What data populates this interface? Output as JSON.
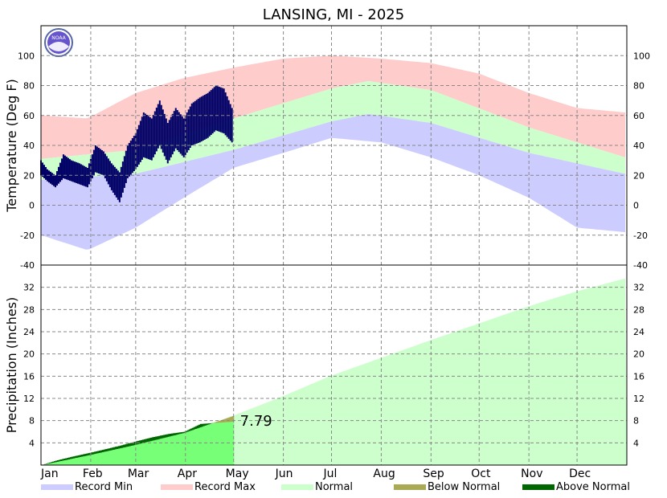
{
  "title": "LANSING, MI - 2025",
  "logo_text": "NOAA",
  "chart_data": [
    {
      "type": "area",
      "name": "temperature",
      "ylabel": "Temperature (Deg F)",
      "ylim": [
        -40,
        120
      ],
      "yticks": [
        -40,
        -20,
        0,
        20,
        40,
        60,
        80,
        100
      ],
      "months": [
        "Jan",
        "Feb",
        "Mar",
        "Apr",
        "May",
        "Jun",
        "Jul",
        "Aug",
        "Sep",
        "Oct",
        "Nov",
        "Dec"
      ],
      "grid": true,
      "normal_high": {
        "days": [
          1,
          60,
          121,
          182,
          205,
          244,
          305,
          365
        ],
        "values": [
          31,
          37,
          58,
          78,
          83,
          77,
          52,
          32
        ]
      },
      "normal_low": {
        "days": [
          1,
          60,
          121,
          182,
          205,
          244,
          305,
          365
        ],
        "values": [
          17,
          21,
          37,
          56,
          61,
          55,
          35,
          21
        ]
      },
      "record_max": {
        "days": [
          1,
          30,
          60,
          90,
          121,
          152,
          182,
          213,
          244,
          274,
          305,
          335,
          365
        ],
        "values": [
          60,
          58,
          75,
          85,
          92,
          98,
          100,
          98,
          95,
          88,
          75,
          65,
          62
        ]
      },
      "record_min": {
        "days": [
          1,
          30,
          60,
          90,
          121,
          152,
          182,
          213,
          244,
          274,
          305,
          335,
          365
        ],
        "values": [
          -20,
          -30,
          -15,
          5,
          25,
          35,
          45,
          42,
          32,
          20,
          5,
          -15,
          -18
        ]
      },
      "observed_2025": {
        "days": [
          1,
          5,
          10,
          15,
          20,
          25,
          30,
          35,
          40,
          45,
          50,
          55,
          60,
          65,
          70,
          75,
          80,
          85,
          90,
          95,
          100,
          105,
          110,
          115,
          120
        ],
        "high": [
          30,
          24,
          20,
          34,
          30,
          28,
          25,
          40,
          36,
          28,
          22,
          40,
          48,
          62,
          58,
          70,
          55,
          65,
          58,
          68,
          72,
          75,
          80,
          78,
          65
        ],
        "low": [
          20,
          16,
          12,
          18,
          16,
          14,
          12,
          22,
          20,
          10,
          2,
          18,
          24,
          32,
          30,
          40,
          28,
          38,
          32,
          40,
          42,
          45,
          50,
          48,
          42
        ]
      }
    },
    {
      "type": "area",
      "name": "precipitation",
      "ylabel": "Precipitation (Inches)",
      "ylim": [
        0,
        36
      ],
      "yticks": [
        4,
        8,
        12,
        16,
        20,
        24,
        28,
        32
      ],
      "normal_cumulative": {
        "days": [
          1,
          31,
          59,
          90,
          120,
          151,
          181,
          212,
          243,
          273,
          304,
          334,
          365
        ],
        "values": [
          0,
          1.8,
          3.6,
          5.8,
          8.8,
          12.3,
          16.0,
          19.2,
          22.4,
          25.4,
          28.5,
          31.2,
          33.6
        ]
      },
      "observed_cumulative": {
        "days": [
          1,
          10,
          20,
          31,
          40,
          50,
          59,
          70,
          80,
          90,
          100,
          105,
          110,
          120
        ],
        "values": [
          0,
          0.8,
          1.5,
          2.2,
          2.8,
          3.5,
          4.2,
          5.0,
          5.6,
          6.0,
          7.4,
          7.5,
          7.6,
          7.79
        ]
      },
      "annotation": "7.79"
    }
  ],
  "legend": [
    {
      "label": "Record Min",
      "color": "#ccccff"
    },
    {
      "label": "Record Max",
      "color": "#ffcccc"
    },
    {
      "label": "Normal",
      "color": "#ccffcc"
    },
    {
      "label": "Below Normal",
      "color": "#aaaa55"
    },
    {
      "label": "Above Normal",
      "color": "#006600"
    }
  ],
  "colors": {
    "observed_temp": "#000066",
    "observed_precip_fill": "#77ff77"
  }
}
